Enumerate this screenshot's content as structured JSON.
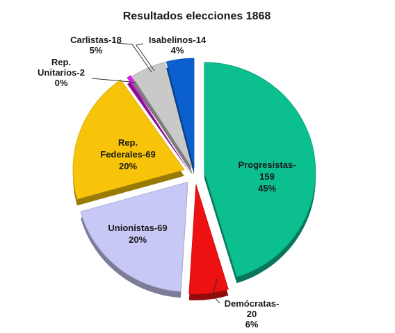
{
  "chart_data": {
    "type": "pie",
    "title": "Resultados elecciones 1868",
    "slices": [
      {
        "name": "Progresistas",
        "seats": 159,
        "percent_label": "45%",
        "color": "#0bbf8f",
        "label_lines": [
          "Progresistas-",
          "159",
          "45%"
        ]
      },
      {
        "name": "Demócratas",
        "seats": 20,
        "percent_label": "6%",
        "color": "#ee1111",
        "label_lines": [
          "Demócratas-",
          "20",
          "6%"
        ]
      },
      {
        "name": "Unionistas",
        "seats": 69,
        "percent_label": "20%",
        "color": "#c8c8f6",
        "label_lines": [
          "Unionistas-69",
          "20%"
        ]
      },
      {
        "name": "Rep. Federales",
        "seats": 69,
        "percent_label": "20%",
        "color": "#f7c40a",
        "label_lines": [
          "Rep.",
          "Federales-69",
          "20%"
        ]
      },
      {
        "name": "Rep. Unitarios",
        "seats": 2,
        "percent_label": "0%",
        "color": "#e01ae6",
        "label_lines": [
          "Rep.",
          "Unitarios-2",
          "0%"
        ]
      },
      {
        "name": "Carlistas",
        "seats": 18,
        "percent_label": "5%",
        "color": "#c9c9c9",
        "label_lines": [
          "Carlistas-18",
          "5%"
        ]
      },
      {
        "name": "Isabelinos",
        "seats": 14,
        "percent_label": "4%",
        "color": "#0b5fcf",
        "label_lines": [
          "Isabelinos-14",
          "4%"
        ]
      }
    ]
  }
}
